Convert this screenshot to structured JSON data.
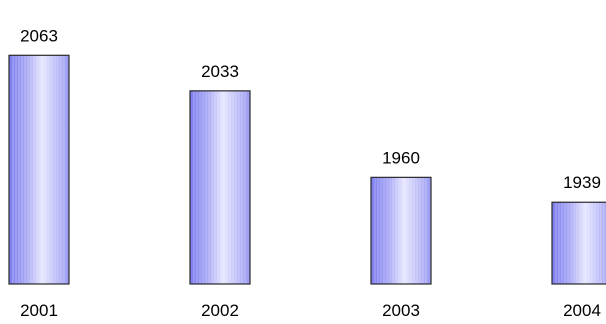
{
  "chart_data": {
    "type": "bar",
    "categories": [
      "2001",
      "2002",
      "2003",
      "2004"
    ],
    "values": [
      2063,
      2033,
      1960,
      1939
    ],
    "data_labels": [
      "2063",
      "2033",
      "1960",
      "1939"
    ],
    "title": "",
    "xlabel": "",
    "ylabel": "",
    "ylim": [
      1870,
      2070
    ],
    "grid": false,
    "legend": "none",
    "bar_color": "#7c7cf0",
    "bar_highlight": "#e6e6ff",
    "bar_edge": "#2a2a2a"
  }
}
